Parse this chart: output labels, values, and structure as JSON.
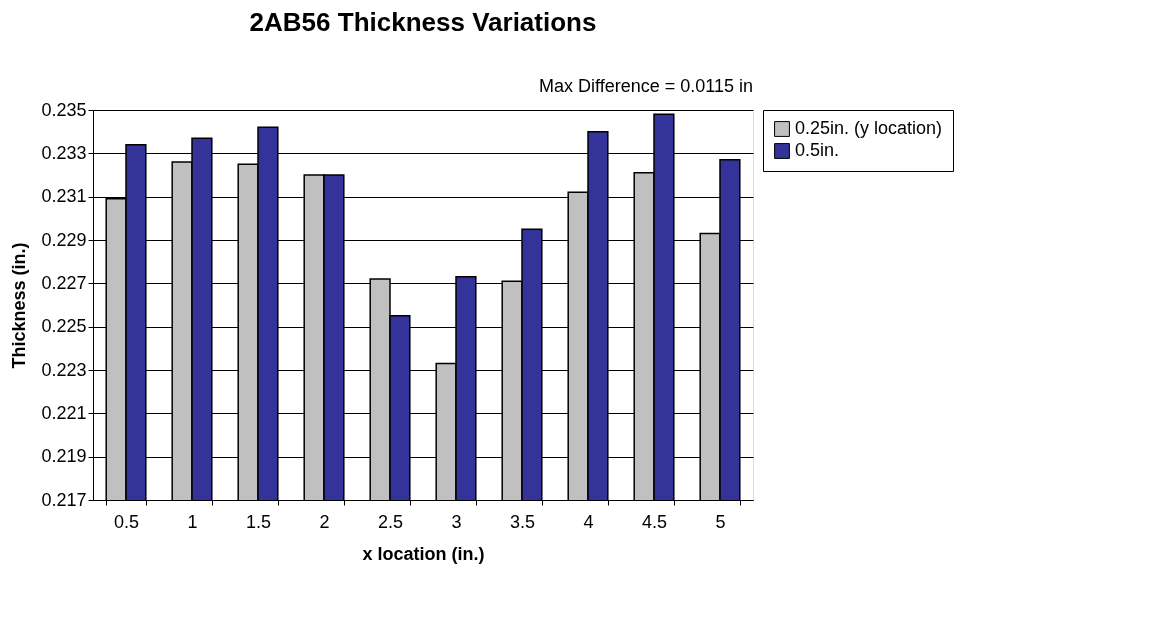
{
  "chart_data": {
    "type": "bar",
    "title": "2AB56 Thickness Variations",
    "annotations": [
      "Max Difference = 0.0115 in"
    ],
    "xlabel": "x location (in.)",
    "ylabel": "Thickness (in.)",
    "categories": [
      "0.5",
      "1",
      "1.5",
      "2",
      "2.5",
      "3",
      "3.5",
      "4",
      "4.5",
      "5"
    ],
    "series": [
      {
        "name": "0.25in. (y location)",
        "color": "#c0c0c0",
        "values": [
          0.2309,
          0.2326,
          0.2325,
          0.232,
          0.2272,
          0.2233,
          0.2271,
          0.2312,
          0.2321,
          0.2293
        ]
      },
      {
        "name": "0.5in.",
        "color": "#333399",
        "values": [
          0.2334,
          0.2337,
          0.2342,
          0.232,
          0.2255,
          0.2273,
          0.2295,
          0.234,
          0.2348,
          0.2327
        ]
      }
    ],
    "ylim": [
      0.217,
      0.235
    ],
    "yticks": [
      0.217,
      0.219,
      0.221,
      0.223,
      0.225,
      0.227,
      0.229,
      0.231,
      0.233,
      0.235
    ],
    "grid": "y",
    "legend": "right"
  }
}
